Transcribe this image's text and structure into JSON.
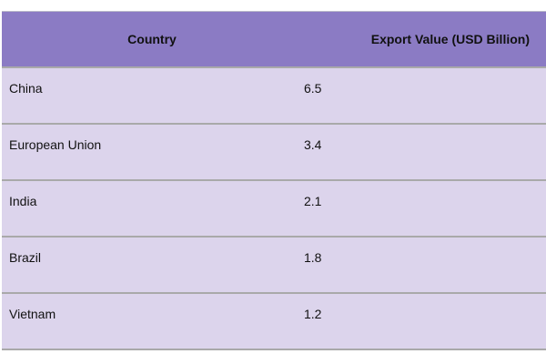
{
  "chart_data": {
    "type": "table",
    "columns": [
      "Country",
      "Export Value (USD Billion)"
    ],
    "rows": [
      {
        "country": "China",
        "value": "6.5"
      },
      {
        "country": "European Union",
        "value": "3.4"
      },
      {
        "country": "India",
        "value": "2.1"
      },
      {
        "country": "Brazil",
        "value": "1.8"
      },
      {
        "country": "Vietnam",
        "value": "1.2"
      }
    ]
  },
  "colors": {
    "header_bg": "#8b7bc4",
    "row_bg": "#dcd4ec",
    "border": "#a9a9a9"
  }
}
